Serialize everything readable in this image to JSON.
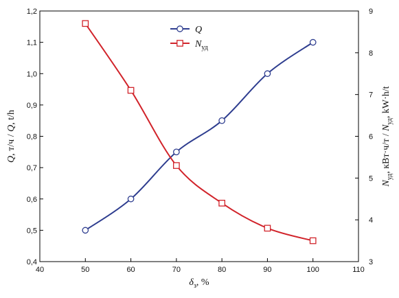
{
  "chart_data": {
    "type": "line",
    "x": [
      50,
      60,
      70,
      80,
      90,
      100
    ],
    "xlabel_main": "δ",
    "xlabel_sub": "з",
    "xlabel_rest": ", %",
    "xlim": [
      40,
      110
    ],
    "xticks": [
      40,
      50,
      60,
      70,
      80,
      90,
      100,
      110
    ],
    "ylabel_left_a": "Q",
    "ylabel_left_b": ", т/ч / ",
    "ylabel_left_c": "Q",
    "ylabel_left_d": ", t/h",
    "ylim_left": [
      0.4,
      1.2
    ],
    "yticks_left": [
      "0,4",
      "0,5",
      "0,6",
      "0,7",
      "0,8",
      "0,9",
      "1,0",
      "1,1",
      "1,2"
    ],
    "ylabel_right_a": "N",
    "ylabel_right_b": "уд",
    "ylabel_right_c": ", кВт·ч/т / ",
    "ylabel_right_d": "N",
    "ylabel_right_e": "уд",
    "ylabel_right_f": ", kW·h/t",
    "ylim_right": [
      3,
      9
    ],
    "yticks_right": [
      "3",
      "4",
      "5",
      "6",
      "7",
      "8",
      "9"
    ],
    "grid": false,
    "legend_position": "top-center",
    "series": [
      {
        "name": "Q",
        "name_sub": "",
        "axis": "left",
        "marker": "circle",
        "color": "#2e3d8f",
        "values": [
          0.5,
          0.6,
          0.75,
          0.85,
          1.0,
          1.1
        ]
      },
      {
        "name": "N",
        "name_sub": "уд",
        "axis": "right",
        "marker": "square",
        "color": "#d1232a",
        "values": [
          8.7,
          7.1,
          5.3,
          4.4,
          3.8,
          3.5
        ]
      }
    ]
  }
}
